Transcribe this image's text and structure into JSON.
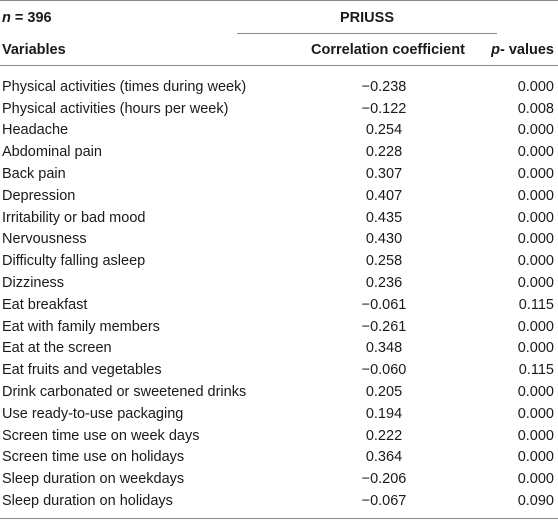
{
  "header": {
    "n_var": "n",
    "n_rest": " = 396",
    "group": "PRIUSS",
    "col_variables": "Variables",
    "col_corr": "Correlation coefficient",
    "col_p_var": "p",
    "col_p_rest": "- values"
  },
  "rows": [
    {
      "variable": "Physical activities (times during week)",
      "corr": "−0.238",
      "p": "0.000"
    },
    {
      "variable": "Physical activities (hours per week)",
      "corr": "−0.122",
      "p": "0.008"
    },
    {
      "variable": "Headache",
      "corr": "0.254",
      "p": "0.000"
    },
    {
      "variable": "Abdominal pain",
      "corr": "0.228",
      "p": "0.000"
    },
    {
      "variable": "Back pain",
      "corr": "0.307",
      "p": "0.000"
    },
    {
      "variable": "Depression",
      "corr": "0.407",
      "p": "0.000"
    },
    {
      "variable": "Irritability or bad mood",
      "corr": "0.435",
      "p": "0.000"
    },
    {
      "variable": "Nervousness",
      "corr": "0.430",
      "p": "0.000"
    },
    {
      "variable": "Difficulty falling asleep",
      "corr": "0.258",
      "p": "0.000"
    },
    {
      "variable": "Dizziness",
      "corr": "0.236",
      "p": "0.000"
    },
    {
      "variable": "Eat breakfast",
      "corr": "−0.061",
      "p": "0.115"
    },
    {
      "variable": "Eat with family members",
      "corr": "−0.261",
      "p": "0.000"
    },
    {
      "variable": "Eat at the screen",
      "corr": "0.348",
      "p": "0.000"
    },
    {
      "variable": "Eat fruits and vegetables",
      "corr": "−0.060",
      "p": "0.115"
    },
    {
      "variable": "Drink carbonated or sweetened drinks",
      "corr": "0.205",
      "p": "0.000"
    },
    {
      "variable": "Use ready-to-use packaging",
      "corr": "0.194",
      "p": "0.000"
    },
    {
      "variable": "Screen time use on week days",
      "corr": "0.222",
      "p": "0.000"
    },
    {
      "variable": "Screen time use on holidays",
      "corr": "0.364",
      "p": "0.000"
    },
    {
      "variable": "Sleep duration on weekdays",
      "corr": "−0.206",
      "p": "0.000"
    },
    {
      "variable": "Sleep duration on holidays",
      "corr": "−0.067",
      "p": "0.090"
    }
  ]
}
